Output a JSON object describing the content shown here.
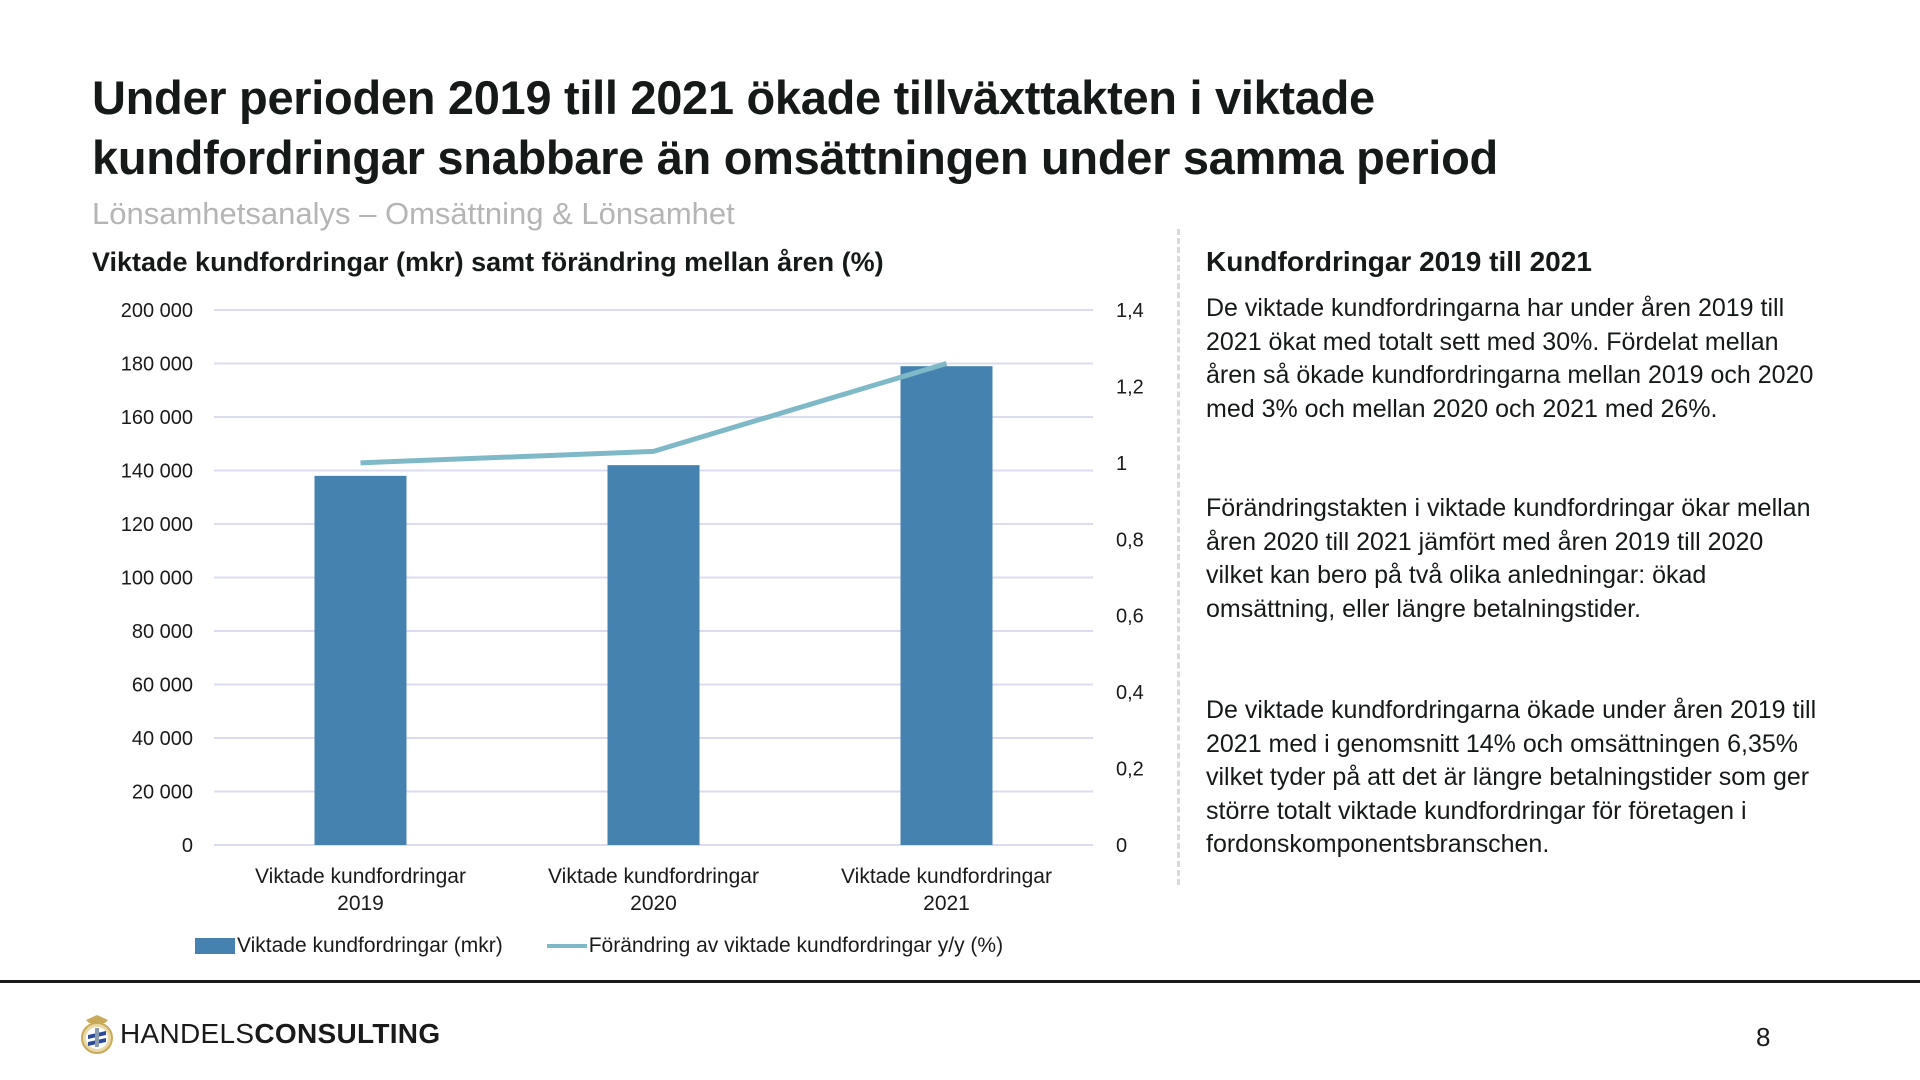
{
  "header": {
    "title_line1": "Under perioden 2019 till 2021 ökade tillväxttakten i viktade",
    "title_line2": "kundfordringar snabbare än omsättningen under samma period",
    "subtitle": "Lönsamhetsanalys – Omsättning & Lönsamhet"
  },
  "colors": {
    "bar": "#4682b0",
    "line": "#7fb9c8",
    "grid": "#dcdcf0",
    "text": "#151a18",
    "subtitle": "#b5b5b5"
  },
  "chart_data": {
    "type": "bar",
    "title": "Viktade kundfordringar (mkr) samt förändring mellan åren (%)",
    "categories": [
      [
        "Viktade kundfordringar",
        "2019"
      ],
      [
        "Viktade kundfordringar",
        "2020"
      ],
      [
        "Viktade kundfordringar",
        "2021"
      ]
    ],
    "series": [
      {
        "name": "Viktade kundfordringar (mkr)",
        "type": "bar",
        "axis": "left",
        "values": [
          138000,
          142000,
          179000
        ]
      },
      {
        "name": "Förändring av viktade kundfordringar y/y (%)",
        "type": "line",
        "axis": "right",
        "values": [
          1.0,
          1.03,
          1.26
        ]
      }
    ],
    "y_left": {
      "range": [
        0,
        200000
      ],
      "ticks": [
        0,
        20000,
        40000,
        60000,
        80000,
        100000,
        120000,
        140000,
        160000,
        180000,
        200000
      ],
      "tick_labels": [
        "0",
        "20 000",
        "40 000",
        "60 000",
        "80 000",
        "100 000",
        "120 000",
        "140 000",
        "160 000",
        "180 000",
        "200 000"
      ]
    },
    "y_right": {
      "range": [
        0,
        1.4
      ],
      "ticks": [
        0,
        0.2,
        0.4,
        0.6,
        0.8,
        1,
        1.2,
        1.4
      ],
      "tick_labels": [
        "0",
        "0,2",
        "0,4",
        "0,6",
        "0,8",
        "1",
        "1,2",
        "1,4"
      ]
    },
    "grid": true,
    "legend_position": "bottom"
  },
  "sidebar": {
    "heading": "Kundfordringar 2019 till 2021",
    "paragraphs": [
      "De viktade kundfordringarna har under åren 2019 till 2021 ökat med totalt sett med 30%. Fördelat mellan åren så ökade kundfordringarna mellan 2019 och 2020 med 3% och mellan 2020 och 2021 med 26%.",
      "Förändringstakten i viktade kundfordringar ökar mellan åren 2020 till 2021 jämfört med åren 2019 till 2020 vilket kan bero på två olika anledningar: ökad omsättning, eller längre betalningstider.",
      "De viktade kundfordringarna ökade under åren 2019 till 2021 med i genomsnitt 14% och omsättningen 6,35% vilket tyder på att det är längre betalningstider som ger större totalt viktade kundfordringar för företagen i fordonskomponentsbranschen."
    ]
  },
  "footer": {
    "logo_light": "HANDELS",
    "logo_bold": "CONSULTING",
    "page_number": "8"
  }
}
